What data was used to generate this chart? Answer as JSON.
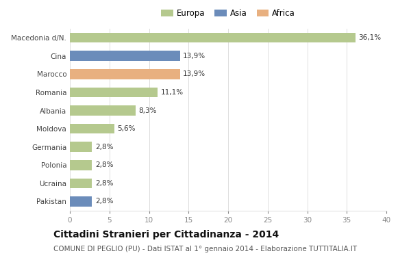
{
  "categories": [
    "Macedonia d/N.",
    "Cina",
    "Marocco",
    "Romania",
    "Albania",
    "Moldova",
    "Germania",
    "Polonia",
    "Ucraina",
    "Pakistan"
  ],
  "values": [
    36.1,
    13.9,
    13.9,
    11.1,
    8.3,
    5.6,
    2.8,
    2.8,
    2.8,
    2.8
  ],
  "labels": [
    "36,1%",
    "13,9%",
    "13,9%",
    "11,1%",
    "8,3%",
    "5,6%",
    "2,8%",
    "2,8%",
    "2,8%",
    "2,8%"
  ],
  "colors": [
    "#b5c98e",
    "#6b8cba",
    "#e8b080",
    "#b5c98e",
    "#b5c98e",
    "#b5c98e",
    "#b5c98e",
    "#b5c98e",
    "#b5c98e",
    "#6b8cba"
  ],
  "legend_labels": [
    "Europa",
    "Asia",
    "Africa"
  ],
  "legend_colors": [
    "#b5c98e",
    "#6b8cba",
    "#e8b080"
  ],
  "xlim": [
    0,
    40
  ],
  "xticks": [
    0,
    5,
    10,
    15,
    20,
    25,
    30,
    35,
    40
  ],
  "title": "Cittadini Stranieri per Cittadinanza - 2014",
  "subtitle": "COMUNE DI PEGLIO (PU) - Dati ISTAT al 1° gennaio 2014 - Elaborazione TUTTITALIA.IT",
  "background_color": "#ffffff",
  "grid_color": "#dddddd",
  "bar_height": 0.55,
  "title_fontsize": 10,
  "subtitle_fontsize": 7.5,
  "label_fontsize": 7.5,
  "tick_fontsize": 7.5,
  "legend_fontsize": 8.5
}
